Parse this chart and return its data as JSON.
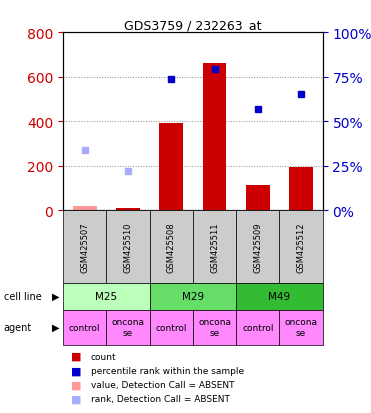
{
  "title": "GDS3759 / 232263_at",
  "samples": [
    "GSM425507",
    "GSM425510",
    "GSM425508",
    "GSM425511",
    "GSM425509",
    "GSM425512"
  ],
  "bar_values": [
    20,
    10,
    390,
    660,
    115,
    195
  ],
  "bar_absent": [
    true,
    false,
    false,
    false,
    false,
    false
  ],
  "bar_color": "#cc0000",
  "bar_absent_color": "#ff9999",
  "dot_values": [
    270,
    175,
    590,
    635,
    455,
    520
  ],
  "dot_absent": [
    true,
    true,
    false,
    false,
    false,
    false
  ],
  "dot_color": "#0000cc",
  "dot_absent_color": "#aaaaff",
  "left_ylim": [
    0,
    800
  ],
  "right_ylim": [
    0,
    100
  ],
  "left_yticks": [
    0,
    200,
    400,
    600,
    800
  ],
  "right_yticks": [
    0,
    25,
    50,
    75,
    100
  ],
  "right_yticklabels": [
    "0%",
    "25%",
    "50%",
    "75%",
    "100%"
  ],
  "cell_lines": [
    {
      "label": "M25",
      "span": [
        0,
        2
      ],
      "color": "#bbffbb"
    },
    {
      "label": "M29",
      "span": [
        2,
        4
      ],
      "color": "#66dd66"
    },
    {
      "label": "M49",
      "span": [
        4,
        6
      ],
      "color": "#33bb33"
    }
  ],
  "agents": [
    "control",
    "oncona\nse",
    "control",
    "oncona\nse",
    "control",
    "oncona\nse"
  ],
  "agent_color": "#ff88ff",
  "left_tick_color": "#cc0000",
  "right_tick_color": "#0000cc",
  "grid_color": "#888888",
  "legend_items": [
    {
      "color": "#cc0000",
      "label": "count"
    },
    {
      "color": "#0000cc",
      "label": "percentile rank within the sample"
    },
    {
      "color": "#ff9999",
      "label": "value, Detection Call = ABSENT"
    },
    {
      "color": "#aaaaff",
      "label": "rank, Detection Call = ABSENT"
    }
  ],
  "cell_line_label": "cell line",
  "agent_label": "agent",
  "fig_width": 3.71,
  "fig_height": 4.14,
  "dpi": 100
}
